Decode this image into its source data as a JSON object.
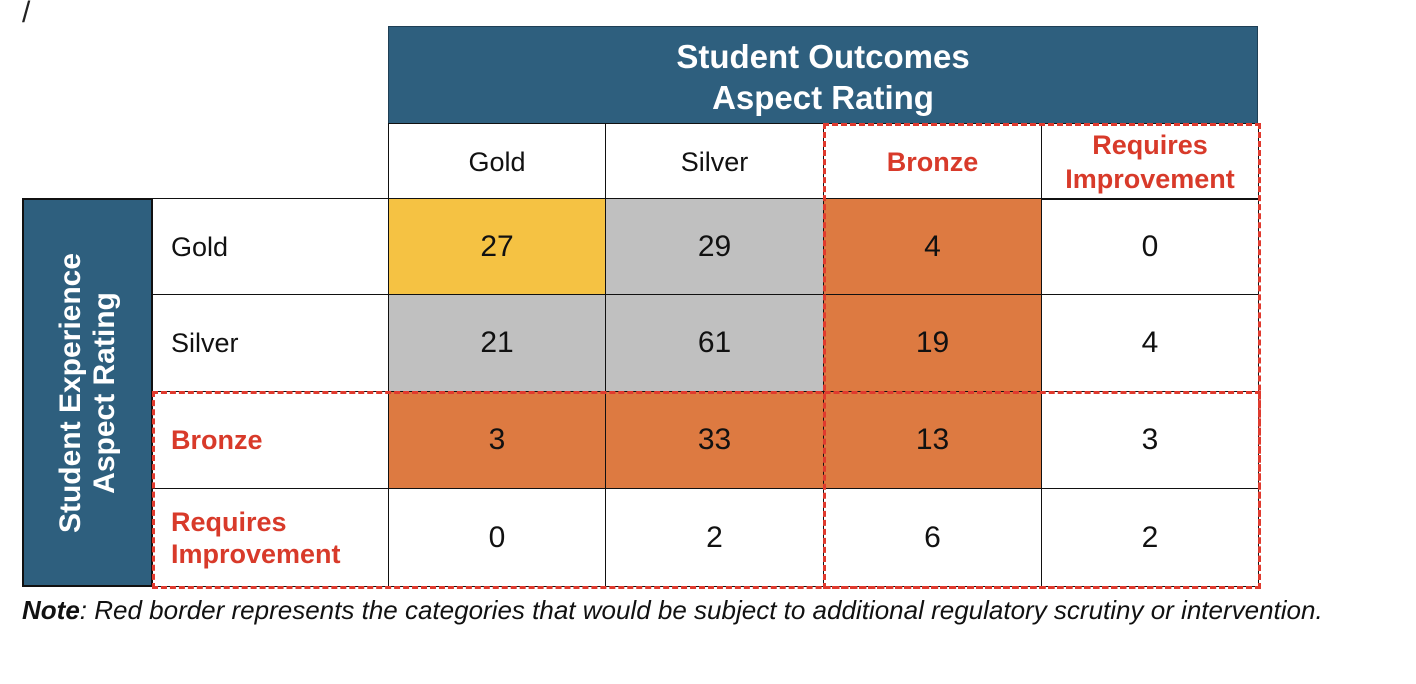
{
  "stray_mark": "/",
  "col_header": {
    "line1": "Student Outcomes",
    "line2": "Aspect Rating"
  },
  "row_header": {
    "line1": "Student Experience",
    "line2": "Aspect Rating"
  },
  "chart_data": {
    "type": "table",
    "column_title": "Student Outcomes Aspect Rating",
    "row_title": "Student Experience Aspect Rating",
    "columns": [
      "Gold",
      "Silver",
      "Bronze",
      "Requires Improvement"
    ],
    "rows": [
      "Gold",
      "Silver",
      "Bronze",
      "Requires Improvement"
    ],
    "column_labels": {
      "c0": "Gold",
      "c1": "Silver",
      "c2": "Bronze",
      "c3_line1": "Requires",
      "c3_line2": "Improvement"
    },
    "row_labels": {
      "r0": "Gold",
      "r1": "Silver",
      "r2": "Bronze",
      "r3_line1": "Requires",
      "r3_line2": "Improvement"
    },
    "values": [
      [
        27,
        29,
        4,
        0
      ],
      [
        21,
        61,
        19,
        4
      ],
      [
        3,
        33,
        13,
        3
      ],
      [
        0,
        2,
        6,
        2
      ]
    ],
    "cell_colors": {
      "gold": "#f5c243",
      "silver": "#c0c0c0",
      "bronze": "#dd7a41",
      "none": "#ffffff"
    },
    "highlight_color": "#e03a2e"
  },
  "note": {
    "label": "Note",
    "text": ": Red border represents the categories that would be subject to additional regulatory scrutiny or intervention."
  }
}
